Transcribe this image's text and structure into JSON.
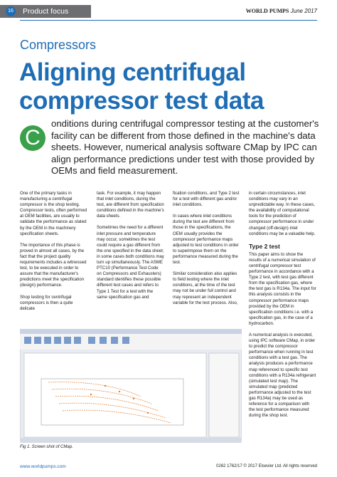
{
  "header": {
    "page_number": "16",
    "section": "Product focus",
    "publication": "WORLD PUMPS",
    "date": "June 2017"
  },
  "kicker": "Compressors",
  "title": "Aligning centrifugal compressor test data",
  "lead": {
    "drop_cap": "C",
    "text": "onditions during centrifugal compressor testing at the customer's facility can be different from those defined in the machine's data sheets. However, numerical analysis software CMap by IPC can align performance predictions under test with those provided by OEMs and field measurement."
  },
  "columns": [
    [
      "One of the primary tasks in manufacturing a centrifugal compressor is the shop testing. Compressor tests, often performed at OEM facilities, are usually to validate the performance as stated by the OEM in the machinery specification sheets.",
      "The importance of this phase is proved in almost all cases, by the fact that the project quality requirements includes a witnessed test, to be executed in order to assure that the manufacturer's predictions meet the specification (design) performance.",
      "Shop testing for centrifugal compressors is then a quite delicate"
    ],
    [
      "task. For example, it may happen that inlet conditions, during the test, are different from specification conditions defined in the machine's data sheets.",
      "Sometimes the need for a different inlet pressure and temperature may occur, sometimes the test could require a gas different from the one specified in the data sheet; in some cases both conditions may turn up simultaneously. The ASME PTC10 (Performance Test Code on Compressors and Exhausters) standard identifies these possible different test cases and refers to Type 1 Test for a test with the same specification gas and"
    ],
    [
      "fication conditions, and Type 2 test for a test with different gas and/or inlet conditions.",
      "In cases where inlet conditions during the test are different from those in the specifications, the OEM usually provides the compressor performance maps adjusted to test conditions in order to superimpose them on the performance measured during the test.",
      "Similar consideration also applies to field testing where the inlet conditions, at the time of the test may not be under full control and may represent an independent variable for the test process. Also,"
    ],
    [
      "in certain circumstances, inlet conditions may vary in an unpredictable way. In these cases, the availability of computational tools for the prediction of compressor performance in under changed (off-design) inlet conditions may be a valuable help."
    ]
  ],
  "subheading": "Type 2 test",
  "column4_rest": [
    "This paper aims to show the results of a numerical simulation of centrifugal compressor test performance in accordance with a Type 2 test, with test gas different from the specification gas, where the test gas is R134a. The input for this analysis consists in the compressor performance maps provided by the OEM in specification conditions i.e. with a specification gas, in the case of a hydrocarbon.",
    "A numerical analysis is executed, using IPC software CMap, in order to predict the compressor performance when running in test conditions with a test gas. The analysis produces a performance map referenced to specific test conditions with a R134a refrigerant (simulated test map). The simulated map (predicted performance adjusted to the test gas R134a) may be used as reference for a comparison with the test performance measured during the shop test."
  ],
  "figure": {
    "caption": "Fig 1. Screen shot of CMap."
  },
  "footer": {
    "website": "www.worldpumps.com",
    "copyright": "0262 1762/17 © 2017 Elsevier Ltd. All rights reserved"
  }
}
